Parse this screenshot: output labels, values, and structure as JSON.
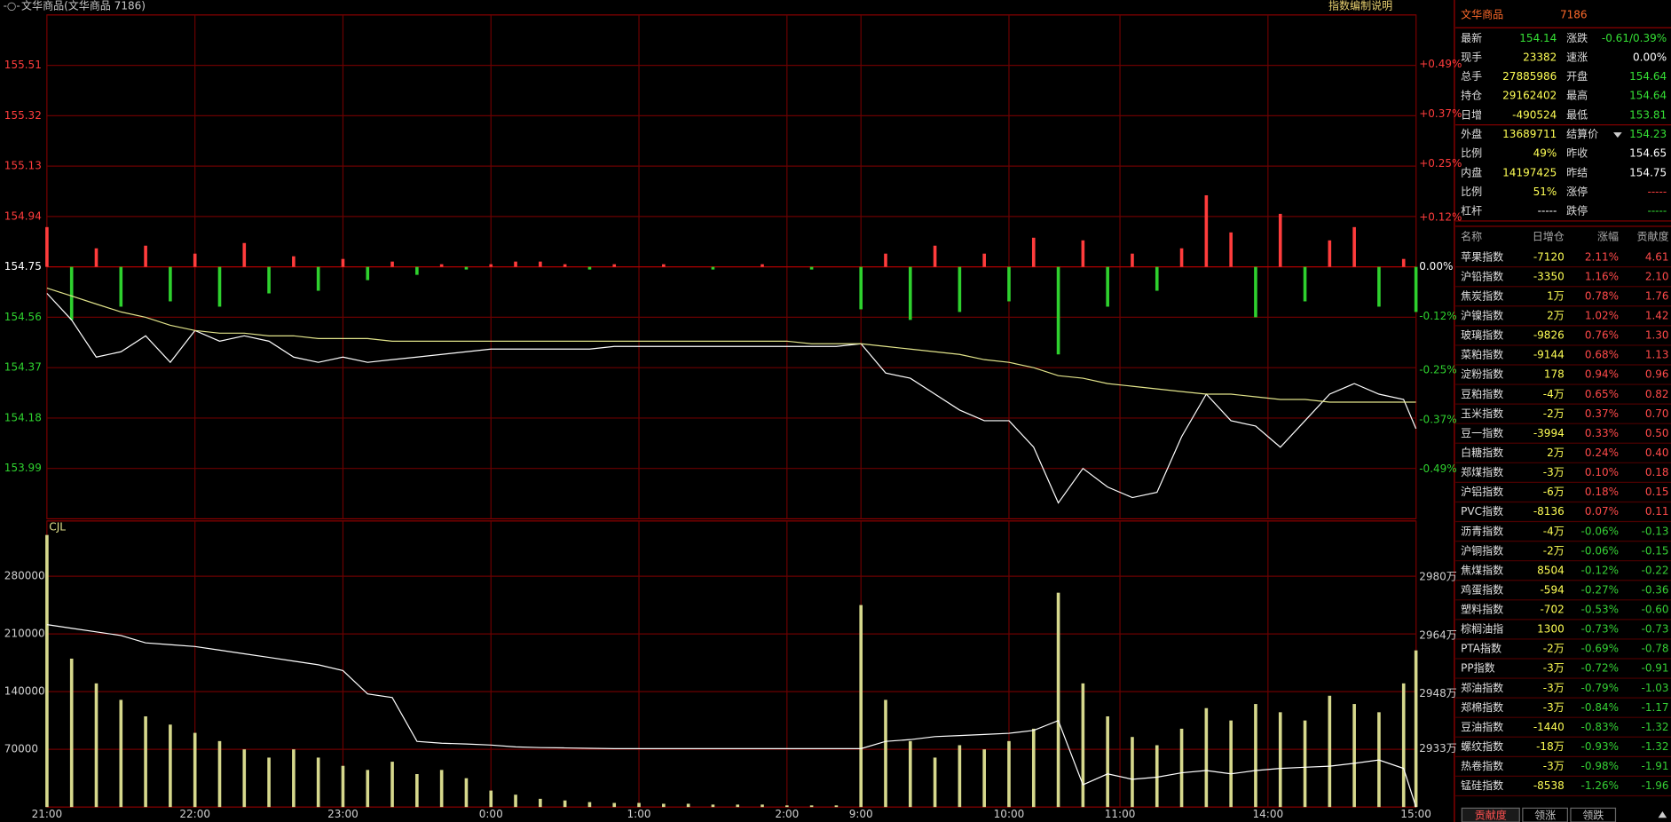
{
  "header": {
    "title": "文华商品(文华商品 7186)",
    "link": "指数编制说明"
  },
  "chart_data": [
    {
      "type": "line",
      "xlim": [
        0,
        555
      ],
      "xticks": [
        0,
        60,
        120,
        180,
        240,
        300,
        330,
        390,
        435,
        495,
        555
      ],
      "ylim": [
        153.8,
        155.7
      ],
      "yticks": [
        155.51,
        155.32,
        155.13,
        154.94,
        154.75,
        154.56,
        154.37,
        154.18,
        153.99
      ],
      "y2lim": [
        -0.61,
        0.61
      ],
      "y2ticks": [
        {
          "value": 0.49,
          "label": "+0.49%"
        },
        {
          "value": 0.37,
          "label": "+0.37%"
        },
        {
          "value": 0.25,
          "label": "+0.25%"
        },
        {
          "value": 0.12,
          "label": "+0.12%"
        },
        {
          "value": 0,
          "label": "0.00%"
        },
        {
          "value": -0.12,
          "label": "-0.12%"
        },
        {
          "value": -0.25,
          "label": "-0.25%"
        },
        {
          "value": -0.37,
          "label": "-0.37%"
        },
        {
          "value": -0.49,
          "label": "-0.49%"
        }
      ],
      "up_color": "#ff3c3c",
      "down_color": "#2ed12e",
      "x": [
        0,
        10,
        20,
        30,
        40,
        50,
        60,
        70,
        80,
        90,
        100,
        110,
        120,
        130,
        140,
        150,
        160,
        170,
        180,
        190,
        200,
        210,
        220,
        230,
        240,
        250,
        260,
        270,
        280,
        290,
        300,
        310,
        320,
        330,
        340,
        350,
        360,
        370,
        380,
        390,
        400,
        410,
        420,
        430,
        440,
        450,
        460,
        470,
        480,
        490,
        500,
        510,
        520,
        530,
        540,
        550,
        555
      ],
      "series": [
        {
          "type": "bar",
          "values": [
            154.9,
            154.55,
            154.82,
            154.6,
            154.83,
            154.62,
            154.8,
            154.6,
            154.84,
            154.65,
            154.79,
            154.66,
            154.78,
            154.7,
            154.77,
            154.72,
            154.76,
            154.74,
            154.76,
            154.77,
            154.77,
            154.76,
            154.74,
            154.76,
            154.75,
            154.76,
            154.75,
            154.74,
            154.75,
            154.76,
            154.75,
            154.74,
            154.75,
            154.59,
            154.8,
            154.55,
            154.83,
            154.58,
            154.8,
            154.62,
            154.86,
            154.42,
            154.85,
            154.6,
            154.8,
            154.66,
            154.82,
            155.02,
            154.88,
            154.56,
            154.95,
            154.62,
            154.85,
            154.9,
            154.6,
            154.78,
            154.58
          ]
        },
        {
          "type": "line",
          "color": "#ffffff",
          "values": [
            154.65,
            154.55,
            154.41,
            154.43,
            154.49,
            154.39,
            154.51,
            154.47,
            154.49,
            154.47,
            154.41,
            154.39,
            154.41,
            154.39,
            154.4,
            154.41,
            154.42,
            154.43,
            154.44,
            154.44,
            154.44,
            154.44,
            154.44,
            154.45,
            154.45,
            154.45,
            154.45,
            154.45,
            154.45,
            154.45,
            154.45,
            154.45,
            154.45,
            154.46,
            154.35,
            154.33,
            154.27,
            154.21,
            154.17,
            154.17,
            154.07,
            153.86,
            153.99,
            153.92,
            153.88,
            153.9,
            154.11,
            154.27,
            154.17,
            154.15,
            154.07,
            154.17,
            154.27,
            154.31,
            154.27,
            154.25,
            154.14
          ]
        },
        {
          "type": "line",
          "color": "#e1e38a",
          "values": [
            154.67,
            154.64,
            154.61,
            154.58,
            154.56,
            154.53,
            154.51,
            154.5,
            154.5,
            154.49,
            154.49,
            154.48,
            154.48,
            154.48,
            154.47,
            154.47,
            154.47,
            154.47,
            154.47,
            154.47,
            154.47,
            154.47,
            154.47,
            154.47,
            154.47,
            154.47,
            154.47,
            154.47,
            154.47,
            154.47,
            154.47,
            154.46,
            154.46,
            154.46,
            154.45,
            154.44,
            154.43,
            154.42,
            154.4,
            154.39,
            154.37,
            154.34,
            154.33,
            154.31,
            154.3,
            154.29,
            154.28,
            154.27,
            154.27,
            154.26,
            154.25,
            154.25,
            154.24,
            154.24,
            154.24,
            154.24,
            154.24
          ]
        }
      ]
    },
    {
      "type": "bar",
      "title": "CJL",
      "xlim": [
        0,
        555
      ],
      "xticks": [
        {
          "value": 0,
          "label": "21:00"
        },
        {
          "value": 60,
          "label": "22:00"
        },
        {
          "value": 120,
          "label": "23:00"
        },
        {
          "value": 180,
          "label": "0:00"
        },
        {
          "value": 240,
          "label": "1:00"
        },
        {
          "value": 300,
          "label": "2:00"
        },
        {
          "value": 330,
          "label": "9:00"
        },
        {
          "value": 390,
          "label": "10:00"
        },
        {
          "value": 435,
          "label": "11:00"
        },
        {
          "value": 495,
          "label": "14:00"
        },
        {
          "value": 555,
          "label": "15:00"
        }
      ],
      "ylim": [
        0,
        347000
      ],
      "yticks": [
        280000,
        210000,
        140000,
        70000
      ],
      "y2lim": [
        29170000,
        29954000
      ],
      "y2ticks": [
        {
          "value": 29800000,
          "label": "2980万"
        },
        {
          "value": 29640000,
          "label": "2964万"
        },
        {
          "value": 29480000,
          "label": "2948万"
        },
        {
          "value": 29330000,
          "label": "2933万"
        }
      ],
      "x": [
        0,
        10,
        20,
        30,
        40,
        50,
        60,
        70,
        80,
        90,
        100,
        110,
        120,
        130,
        140,
        150,
        160,
        170,
        180,
        190,
        200,
        210,
        220,
        230,
        240,
        250,
        260,
        270,
        280,
        290,
        300,
        310,
        320,
        330,
        340,
        350,
        360,
        370,
        380,
        390,
        400,
        410,
        420,
        430,
        440,
        450,
        460,
        470,
        480,
        490,
        500,
        510,
        520,
        530,
        540,
        550,
        555
      ],
      "series": [
        {
          "type": "bar",
          "color": "#d6d88c",
          "values": [
            330000,
            180000,
            150000,
            130000,
            110000,
            100000,
            90000,
            80000,
            70000,
            60000,
            70000,
            60000,
            50000,
            45000,
            55000,
            40000,
            45000,
            35000,
            20000,
            15000,
            10000,
            8000,
            6000,
            5000,
            5000,
            4000,
            4000,
            3000,
            3000,
            3000,
            2000,
            2000,
            2000,
            245000,
            130000,
            80000,
            60000,
            75000,
            70000,
            80000,
            95000,
            260000,
            150000,
            110000,
            85000,
            75000,
            95000,
            120000,
            105000,
            125000,
            115000,
            105000,
            135000,
            125000,
            115000,
            150000,
            190000
          ]
        },
        {
          "type": "line",
          "axis": "y2",
          "color": "#ffffff",
          "values": [
            29670000,
            29660000,
            29650000,
            29640000,
            29620000,
            29615000,
            29610000,
            29600000,
            29590000,
            29580000,
            29570000,
            29560000,
            29544000,
            29480000,
            29470000,
            29350000,
            29345000,
            29343000,
            29340000,
            29335000,
            29333000,
            29332000,
            29331000,
            29330000,
            29330000,
            29330000,
            29330000,
            29330000,
            29330000,
            29330000,
            29330000,
            29330000,
            29330000,
            29330000,
            29350000,
            29355000,
            29363000,
            29366000,
            29369000,
            29372000,
            29380000,
            29407000,
            29231000,
            29261000,
            29246000,
            29252000,
            29264000,
            29270000,
            29261000,
            29270000,
            29276000,
            29279000,
            29282000,
            29290000,
            29299000,
            29276000,
            29170000
          ]
        }
      ]
    }
  ],
  "quote": {
    "name": "文华商品",
    "code": "7186",
    "rows": [
      [
        "最新",
        "154.14",
        "涨跌",
        "-0.61/0.39%"
      ],
      [
        "现手",
        "23382",
        "速涨",
        "0.00%"
      ],
      [
        "总手",
        "27885986",
        "开盘",
        "154.64"
      ],
      [
        "持仓",
        "29162402",
        "最高",
        "154.64"
      ],
      [
        "日增",
        "-490524",
        "最低",
        "153.81"
      ],
      [
        "外盘",
        "13689711",
        "结算价",
        "154.23"
      ],
      [
        "比例",
        "49%",
        "昨收",
        "154.65"
      ],
      [
        "内盘",
        "14197425",
        "昨结",
        "154.75"
      ],
      [
        "比例",
        "51%",
        "涨停",
        "-----"
      ],
      [
        "杠杆",
        "-----",
        "跌停",
        "-----"
      ]
    ],
    "colors": [
      [
        "#35e035",
        "#35e035"
      ],
      [
        "#ffff55",
        "#ffffff"
      ],
      [
        "#ffff55",
        "#35e035"
      ],
      [
        "#ffff55",
        "#35e035"
      ],
      [
        "#ffff55",
        "#35e035"
      ],
      [
        "#ffff55",
        "#35e035"
      ],
      [
        "#ffff55",
        "#ffffff"
      ],
      [
        "#ffff55",
        "#ffffff"
      ],
      [
        "#ffff55",
        "#ff4040"
      ],
      [
        "#ffffff",
        "#35e035"
      ]
    ]
  },
  "table": {
    "columns": [
      "名称",
      "日增仓",
      "涨幅",
      "贡献度"
    ],
    "rows": [
      [
        "苹果指数",
        "-7120",
        "2.11%",
        "4.61"
      ],
      [
        "沪铅指数",
        "-3350",
        "1.16%",
        "2.10"
      ],
      [
        "焦炭指数",
        "1万",
        "0.78%",
        "1.76"
      ],
      [
        "沪镍指数",
        "2万",
        "1.02%",
        "1.42"
      ],
      [
        "玻璃指数",
        "-9826",
        "0.76%",
        "1.30"
      ],
      [
        "菜粕指数",
        "-9144",
        "0.68%",
        "1.13"
      ],
      [
        "淀粉指数",
        "178",
        "0.94%",
        "0.96"
      ],
      [
        "豆粕指数",
        "-4万",
        "0.65%",
        "0.82"
      ],
      [
        "玉米指数",
        "-2万",
        "0.37%",
        "0.70"
      ],
      [
        "豆一指数",
        "-3994",
        "0.33%",
        "0.50"
      ],
      [
        "白糖指数",
        "2万",
        "0.24%",
        "0.40"
      ],
      [
        "郑煤指数",
        "-3万",
        "0.10%",
        "0.18"
      ],
      [
        "沪铝指数",
        "-6万",
        "0.18%",
        "0.15"
      ],
      [
        "PVC指数",
        "-8136",
        "0.07%",
        "0.11"
      ],
      [
        "沥青指数",
        "-4万",
        "-0.06%",
        "-0.13"
      ],
      [
        "沪铜指数",
        "-2万",
        "-0.06%",
        "-0.15"
      ],
      [
        "焦煤指数",
        "8504",
        "-0.12%",
        "-0.22"
      ],
      [
        "鸡蛋指数",
        "-594",
        "-0.27%",
        "-0.36"
      ],
      [
        "塑料指数",
        "-702",
        "-0.53%",
        "-0.60"
      ],
      [
        "棕榈油指",
        "1300",
        "-0.73%",
        "-0.73"
      ],
      [
        "PTA指数",
        "-2万",
        "-0.69%",
        "-0.78"
      ],
      [
        "PP指数",
        "-3万",
        "-0.72%",
        "-0.91"
      ],
      [
        "郑油指数",
        "-3万",
        "-0.79%",
        "-1.03"
      ],
      [
        "郑棉指数",
        "-3万",
        "-0.84%",
        "-1.17"
      ],
      [
        "豆油指数",
        "-1440",
        "-0.83%",
        "-1.32"
      ],
      [
        "螺纹指数",
        "-18万",
        "-0.93%",
        "-1.32"
      ],
      [
        "热卷指数",
        "-3万",
        "-0.98%",
        "-1.91"
      ],
      [
        "锰硅指数",
        "-8538",
        "-1.26%",
        "-1.96"
      ]
    ]
  },
  "tabs": [
    "贡献度",
    "领涨",
    "领跌"
  ]
}
